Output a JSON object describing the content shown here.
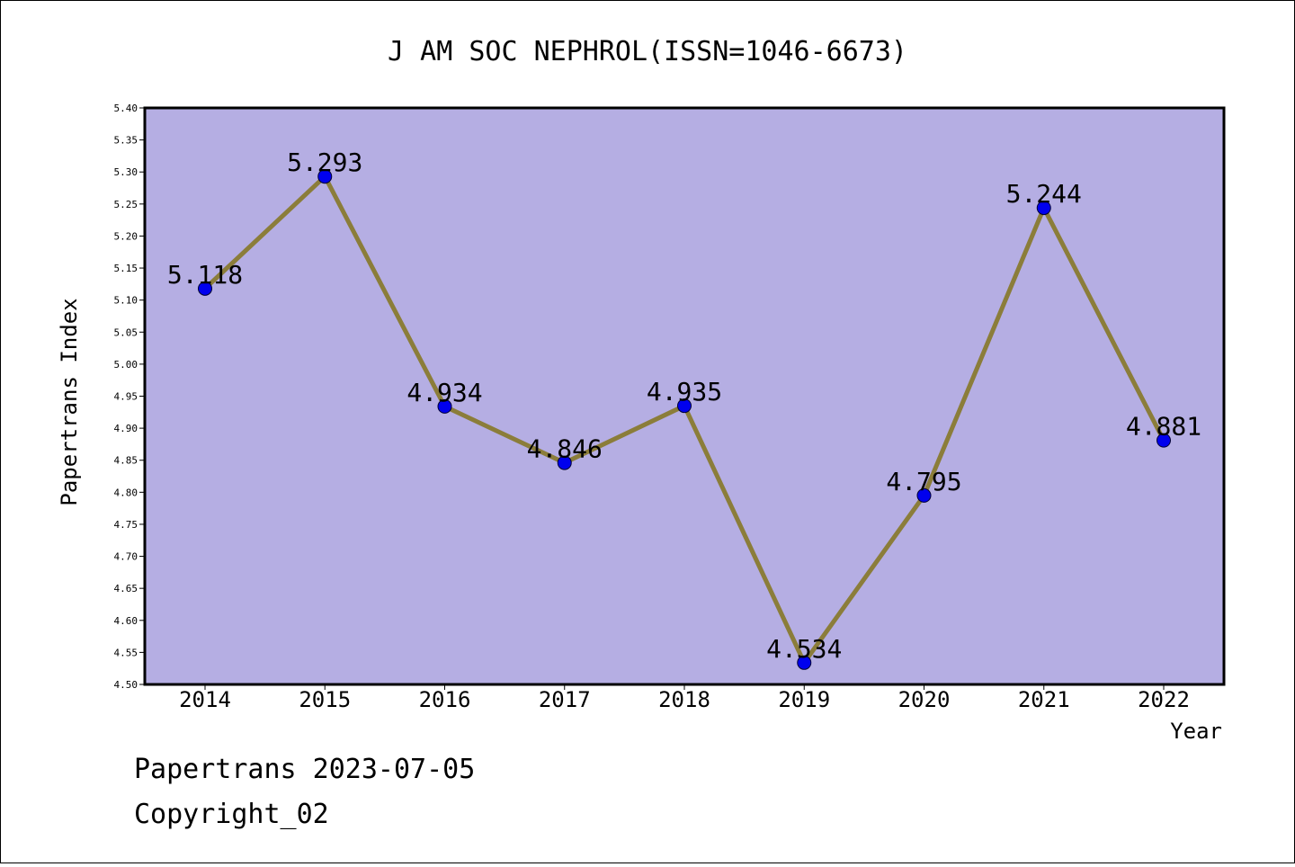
{
  "chart_data": {
    "type": "line",
    "title": "J AM SOC NEPHROL(ISSN=1046-6673)",
    "xlabel": "Year",
    "ylabel": "Papertrans Index",
    "categories": [
      "2014",
      "2015",
      "2016",
      "2017",
      "2018",
      "2019",
      "2020",
      "2021",
      "2022"
    ],
    "values": [
      5.118,
      5.293,
      4.934,
      4.846,
      4.935,
      4.534,
      4.795,
      5.244,
      4.881
    ],
    "value_labels": [
      "5.118",
      "5.293",
      "4.934",
      "4.846",
      "4.935",
      "4.534",
      "4.795",
      "5.244",
      "4.881"
    ],
    "ylim": [
      4.5,
      5.4
    ],
    "yticks": [
      "4.50",
      "4.55",
      "4.60",
      "4.65",
      "4.70",
      "4.75",
      "4.80",
      "4.85",
      "4.90",
      "4.95",
      "5.00",
      "5.05",
      "5.10",
      "5.15",
      "5.20",
      "5.25",
      "5.30",
      "5.35",
      "5.40"
    ],
    "grid": false,
    "colors": {
      "plot_background": "#b5aee3",
      "line": "#8b7d3a",
      "marker": "#0000ee"
    }
  },
  "footer": {
    "line1": "Papertrans 2023-07-05",
    "line2": "Copyright_02"
  }
}
